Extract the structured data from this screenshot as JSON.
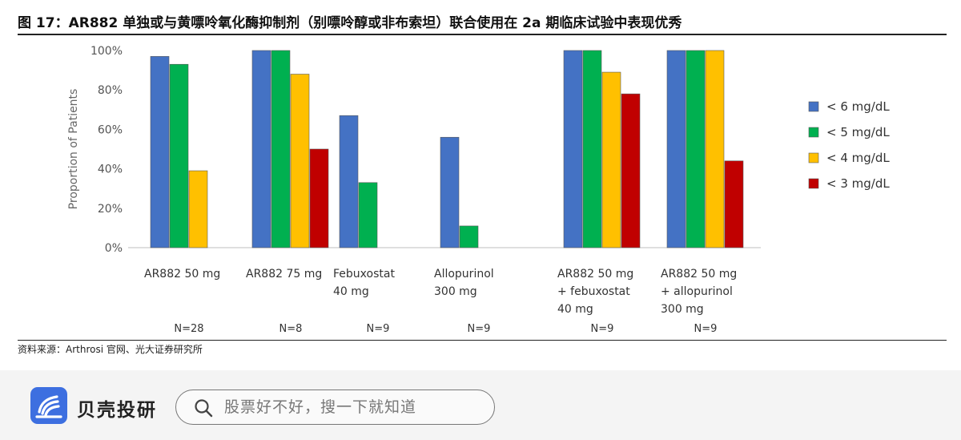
{
  "header": {
    "title": "图 17：AR882 单独或与黄嘌呤氧化酶抑制剂（别嘌呤醇或非布索坦）联合使用在 2a 期临床试验中表现优秀"
  },
  "chart_data": {
    "type": "bar",
    "title": "",
    "xlabel": "",
    "ylabel": "Proportion of Patients",
    "ylim": [
      0,
      100
    ],
    "yticks": [
      "0%",
      "20%",
      "40%",
      "60%",
      "80%",
      "100%"
    ],
    "grid": false,
    "legend_position": "right",
    "categories": [
      [
        "AR882 50 mg"
      ],
      [
        "AR882 75 mg"
      ],
      [
        "Febuxostat",
        "40 mg"
      ],
      [
        "Allopurinol",
        "300 mg"
      ],
      [
        "AR882 50 mg",
        "+ febuxostat",
        "40 mg"
      ],
      [
        "AR882 50 mg",
        "+ allopurinol",
        "300 mg"
      ]
    ],
    "n_labels": [
      "N=28",
      "N=8",
      "N=9",
      "N=9",
      "N=9",
      "N=9"
    ],
    "series": [
      {
        "name": "< 6 mg/dL",
        "color": "#4472c4",
        "values": [
          97,
          100,
          67,
          56,
          100,
          100
        ]
      },
      {
        "name": "< 5 mg/dL",
        "color": "#00b050",
        "values": [
          93,
          100,
          33,
          11,
          100,
          100
        ]
      },
      {
        "name": "< 4 mg/dL",
        "color": "#ffc000",
        "values": [
          39,
          88,
          null,
          null,
          89,
          100
        ]
      },
      {
        "name": "< 3 mg/dL",
        "color": "#c00000",
        "values": [
          null,
          50,
          null,
          null,
          78,
          44
        ]
      }
    ]
  },
  "source": "资料来源：Arthrosi 官网、光大证券研究所",
  "footer": {
    "brand_name": "贝壳投研",
    "search_placeholder": "股票好不好，搜一下就知道"
  }
}
